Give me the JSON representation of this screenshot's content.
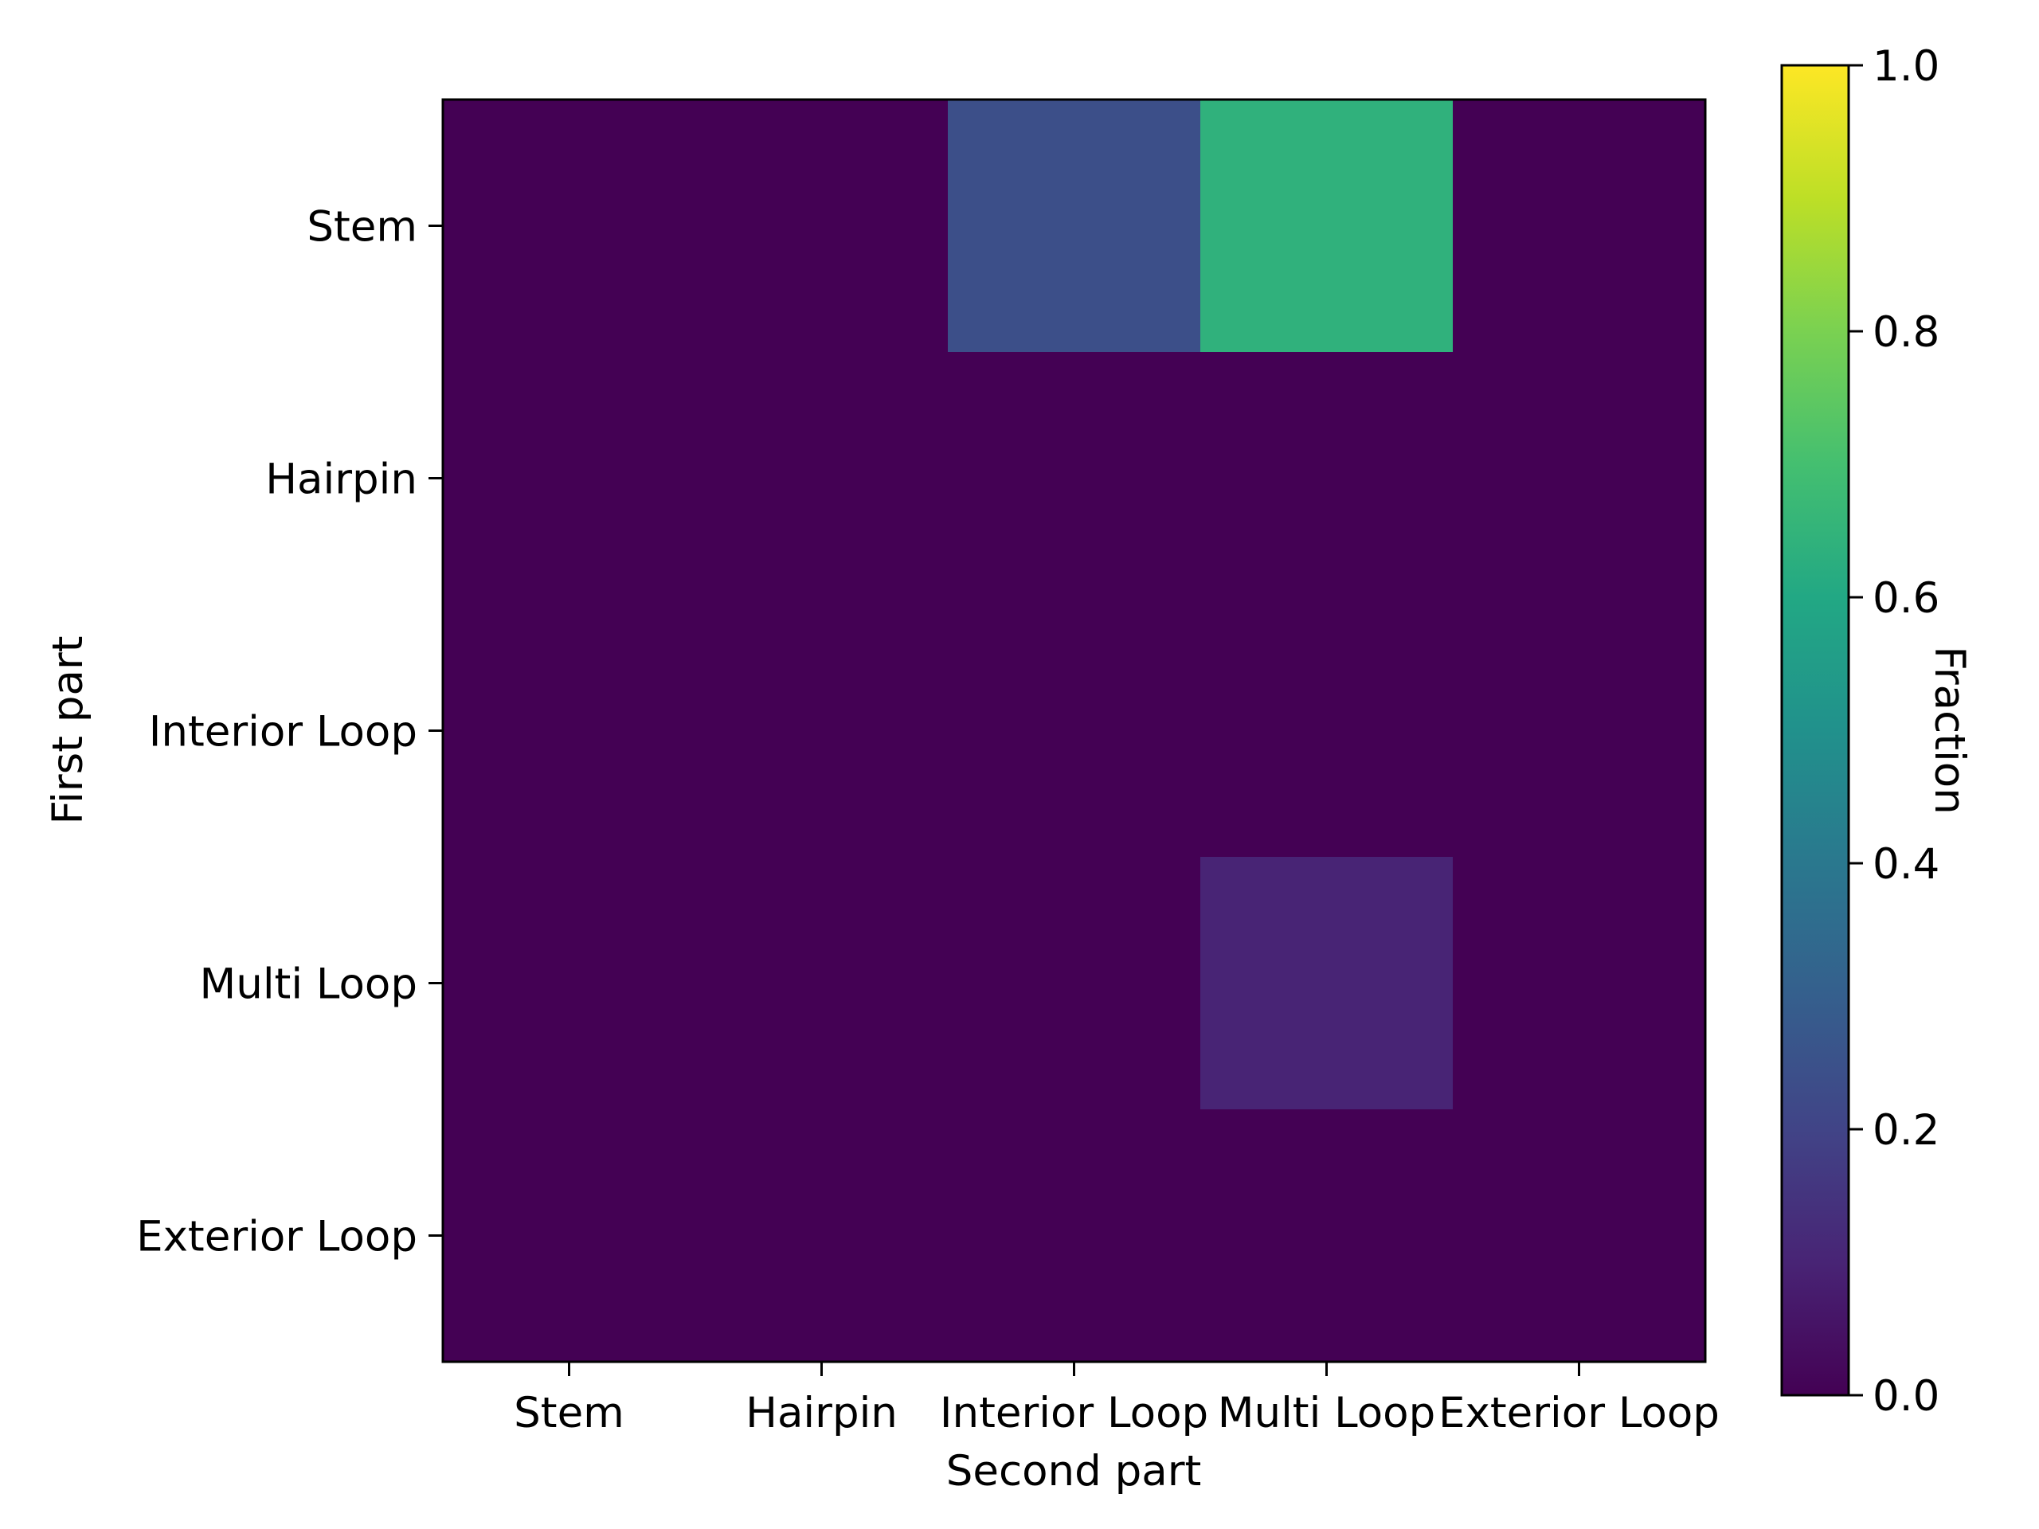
{
  "chart_data": {
    "type": "heatmap",
    "title": "",
    "xlabel": "Second part",
    "ylabel": "First part",
    "x_categories": [
      "Stem",
      "Hairpin",
      "Interior Loop",
      "Multi Loop",
      "Exterior Loop"
    ],
    "y_categories": [
      "Stem",
      "Hairpin",
      "Interior Loop",
      "Multi Loop",
      "Exterior Loop"
    ],
    "values": [
      [
        0.0,
        0.0,
        0.24,
        0.64,
        0.0
      ],
      [
        0.0,
        0.0,
        0.0,
        0.0,
        0.0
      ],
      [
        0.0,
        0.0,
        0.0,
        0.0,
        0.0
      ],
      [
        0.0,
        0.0,
        0.0,
        0.1,
        0.0
      ],
      [
        0.0,
        0.0,
        0.0,
        0.0,
        0.0
      ]
    ],
    "colormap": "viridis",
    "colorbar": {
      "label": "Fraction",
      "range": [
        0.0,
        1.0
      ],
      "ticks": [
        "0.0",
        "0.2",
        "0.4",
        "0.6",
        "0.8",
        "1.0"
      ]
    },
    "grid": false,
    "legend": "none"
  }
}
